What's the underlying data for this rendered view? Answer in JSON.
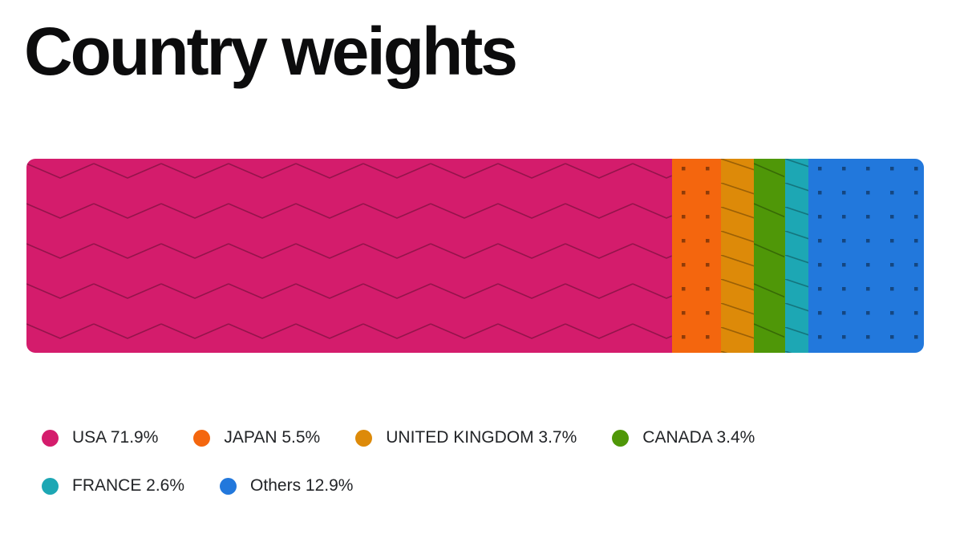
{
  "title": "Country weights",
  "chart_data": {
    "type": "bar",
    "variant": "horizontal-stacked-single-bar",
    "title": "Country weights",
    "categories": [
      "USA",
      "JAPAN",
      "UNITED KINGDOM",
      "CANADA",
      "FRANCE",
      "Others"
    ],
    "values": [
      71.9,
      5.5,
      3.7,
      3.4,
      2.6,
      12.9
    ],
    "unit": "%",
    "xlim": [
      0,
      100
    ],
    "axes_visible": false,
    "grid": false,
    "legend_position": "bottom",
    "colors": [
      "#d41c6c",
      "#f4660e",
      "#dd8a09",
      "#4f9708",
      "#1da7b4",
      "#2278dc"
    ],
    "patterns": [
      "zigzag",
      "dots",
      "diagonal-lines",
      "zigzag",
      "diagonal-lines",
      "dots"
    ]
  },
  "legend": {
    "labels": [
      "USA 71.9%",
      "JAPAN 5.5%",
      "UNITED KINGDOM 3.7%",
      "CANADA 3.4%",
      "FRANCE 2.6%",
      "Others 12.9%"
    ],
    "row_break_index": 4
  },
  "style": {
    "background": "#ffffff",
    "title_color": "#0c0c0d",
    "legend_text_color": "#222427",
    "pattern_line_opacity": 0.3,
    "pattern_dot_opacity": 0.42
  }
}
